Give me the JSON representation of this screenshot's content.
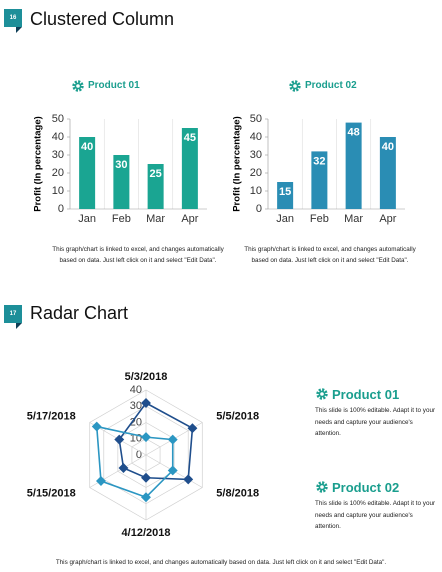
{
  "slides": [
    {
      "number": "16",
      "title": "Clustered Column"
    },
    {
      "number": "17",
      "title": "Radar Chart"
    }
  ],
  "chart_data": [
    {
      "type": "bar",
      "title": "Product 01",
      "categories": [
        "Jan",
        "Feb",
        "Mar",
        "Apr"
      ],
      "values": [
        40,
        30,
        25,
        45
      ],
      "color": "#1aa592",
      "ylim": [
        0,
        50
      ],
      "yticks": [
        0,
        10,
        20,
        30,
        40,
        50
      ],
      "y_label": "Profit  (In percentage)",
      "caption": "This graph/chart is linked to excel, and changes automatically based on data. Just left click on it and select \"Edit Data\"."
    },
    {
      "type": "bar",
      "title": "Product 02",
      "categories": [
        "Jan",
        "Feb",
        "Mar",
        "Apr"
      ],
      "values": [
        15,
        32,
        48,
        40
      ],
      "color": "#2a8db4",
      "ylim": [
        0,
        50
      ],
      "yticks": [
        0,
        10,
        20,
        30,
        40,
        50
      ],
      "y_label": "Profit  (In percentage)",
      "caption": "This graph/chart is linked to excel, and changes automatically based on data. Just left click on it and select \"Edit Data\"."
    },
    {
      "type": "radar",
      "categories": [
        "5/3/2018",
        "5/5/2018",
        "5/8/2018",
        "4/12/2018",
        "5/15/2018",
        "5/17/2018"
      ],
      "rlim": [
        0,
        40
      ],
      "rticks": [
        0,
        10,
        20,
        30,
        40
      ],
      "series": [
        {
          "name": "Product 01",
          "color": "#1f4e8c",
          "values": [
            32,
            33,
            30,
            14,
            16,
            19
          ]
        },
        {
          "name": "Product 02",
          "color": "#2b96c2",
          "values": [
            11,
            19,
            19,
            26,
            32,
            35
          ]
        }
      ]
    }
  ],
  "product_notes": [
    "This slide is 100% editable. Adapt it to your needs and capture your audience's attention.",
    "This slide is 100% editable. Adapt it to your needs and capture your audience's attention."
  ],
  "footer": "This graph/chart is linked to excel, and changes automatically based on data. Just left click on it and select \"Edit Data\"."
}
